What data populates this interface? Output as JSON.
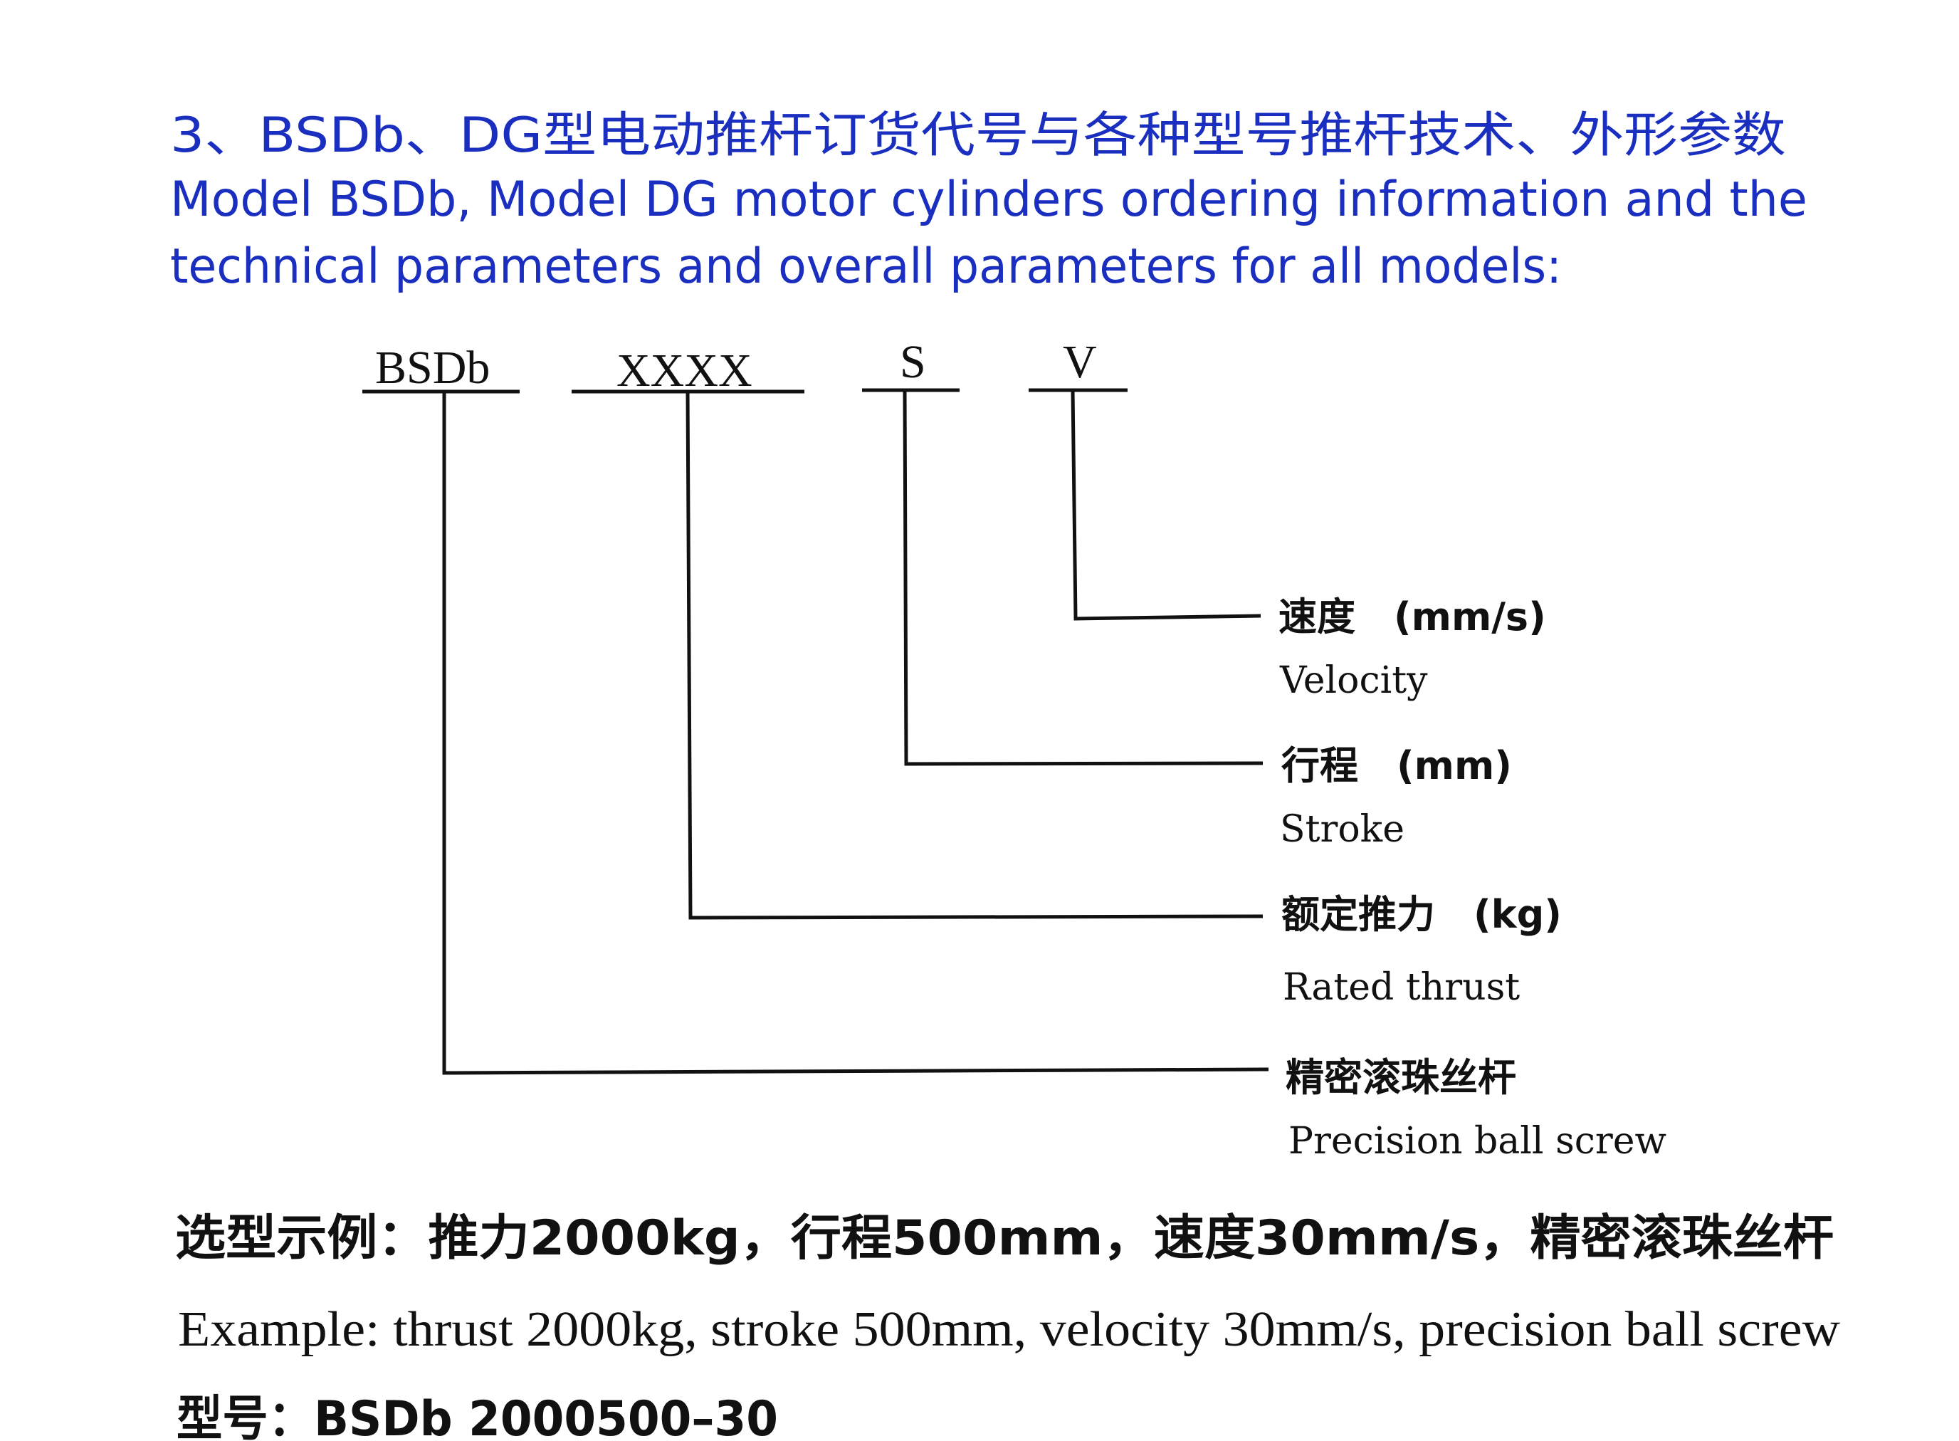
{
  "heading": {
    "line1": "3、BSDb、DG型电动推杆订货代号与各种型号推杆技术、外形参数",
    "line2": "Model  BSDb,  Model DG motor cylinders ordering information and the",
    "line3": "technical parameters and overall parameters for all models:"
  },
  "code_parts": [
    "BSDb",
    "XXXX",
    "S",
    "V"
  ],
  "legend": [
    {
      "zh": "速度　(mm/s)",
      "en": "Velocity"
    },
    {
      "zh": "行程　(mm)",
      "en": "Stroke"
    },
    {
      "zh": "额定推力　(kg)",
      "en": "Rated thrust"
    },
    {
      "zh": "精密滚珠丝杆",
      "en": "Precision ball screw"
    }
  ],
  "example": {
    "zh": "选型示例：推力2000kg，行程500mm，速度30mm/s，精密滚珠丝杆",
    "en": "Example: thrust 2000kg, stroke 500mm, velocity 30mm/s, precision ball screw",
    "model": "型号：BSDb 2000500–30"
  },
  "colors": {
    "heading": "#1a2fc0",
    "text": "#111111"
  }
}
